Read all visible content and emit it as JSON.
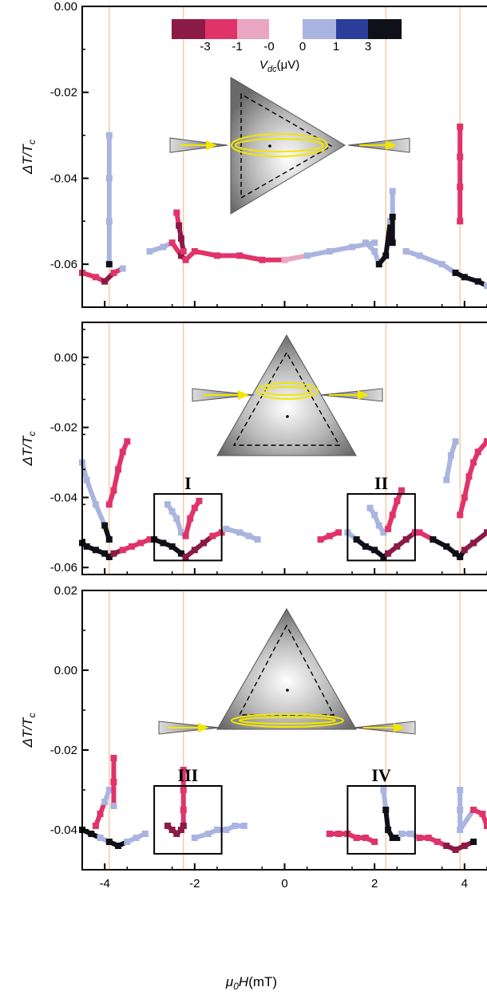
{
  "chart_data": {
    "type": "heatmap",
    "x_axis": {
      "label_main": "μ",
      "label_sub": "0",
      "label_rest": "H(mT)",
      "range": [
        -4.5,
        4.5
      ],
      "ticks": [
        -4,
        -2,
        0,
        2,
        4
      ],
      "tick_labels": [
        "-4",
        "-2",
        "0",
        "2",
        "4"
      ]
    },
    "y_axis_label": {
      "main": "ΔT/T",
      "sub": "c"
    },
    "colorbar": {
      "title_main": "V",
      "title_sub": "dc",
      "title_rest": "(μV)",
      "tick_labels": [
        "-3",
        "-1",
        "-0",
        "0",
        "1",
        "3"
      ],
      "colors": [
        "#8b1a47",
        "#e0336a",
        "#eaa5c0",
        "#ffffff",
        "#aab4e0",
        "#2b3e9c",
        "#101018"
      ]
    },
    "reference_lines_mT": [
      -3.9,
      -2.25,
      2.25,
      3.9
    ],
    "panels": [
      {
        "id": "top",
        "ylim": [
          -0.07,
          0.0
        ],
        "y_ticks": [
          0.0,
          -0.02,
          -0.04,
          -0.06
        ],
        "y_tick_labels": [
          "0.00",
          "-0.02",
          "-0.04",
          "-0.06"
        ],
        "inset": "triangle-pointing-right",
        "boxes": [],
        "traces": [
          {
            "x": [
              -4.5,
              -4.2,
              -4.0,
              -3.8,
              -3.6
            ],
            "y": [
              -0.062,
              -0.063,
              -0.064,
              -0.062,
              -0.061
            ],
            "v": [
              -1,
              -1,
              -3,
              -1,
              1
            ]
          },
          {
            "x": [
              -3.9,
              -3.9,
              -3.9,
              -3.9
            ],
            "y": [
              -0.03,
              -0.04,
              -0.05,
              -0.06
            ],
            "v": [
              1,
              1,
              1,
              3
            ]
          },
          {
            "x": [
              -3.0,
              -2.7,
              -2.5,
              -2.3,
              -2.2,
              -2.0,
              -1.5,
              -1.0,
              -0.5,
              0.0,
              0.5,
              1.0,
              1.5,
              2.0
            ],
            "y": [
              -0.057,
              -0.056,
              -0.055,
              -0.058,
              -0.059,
              -0.057,
              -0.058,
              -0.058,
              -0.059,
              -0.059,
              -0.058,
              -0.057,
              -0.056,
              -0.055
            ],
            "v": [
              1,
              1,
              -1,
              -3,
              -1,
              -1,
              -1,
              -1,
              -1,
              0,
              1,
              1,
              1,
              1
            ]
          },
          {
            "x": [
              -2.4,
              -2.35,
              -2.3,
              -2.25
            ],
            "y": [
              -0.048,
              -0.051,
              -0.054,
              -0.057
            ],
            "v": [
              -1,
              -3,
              -3,
              -1
            ]
          },
          {
            "x": [
              1.8,
              2.0,
              2.1,
              2.25,
              2.35
            ],
            "y": [
              -0.055,
              -0.057,
              -0.06,
              -0.058,
              -0.05
            ],
            "v": [
              1,
              1,
              3,
              3,
              1
            ]
          },
          {
            "x": [
              2.4,
              2.4,
              2.4
            ],
            "y": [
              -0.043,
              -0.049,
              -0.055
            ],
            "v": [
              1,
              3,
              3
            ]
          },
          {
            "x": [
              2.7,
              3.0,
              3.5,
              3.8,
              4.0,
              4.3,
              4.5
            ],
            "y": [
              -0.057,
              -0.058,
              -0.06,
              -0.062,
              -0.063,
              -0.064,
              -0.065
            ],
            "v": [
              1,
              1,
              1,
              3,
              3,
              3,
              1
            ]
          },
          {
            "x": [
              3.9,
              3.9,
              3.9,
              3.9
            ],
            "y": [
              -0.028,
              -0.035,
              -0.042,
              -0.05
            ],
            "v": [
              -1,
              -1,
              -1,
              -1
            ]
          }
        ]
      },
      {
        "id": "middle",
        "ylim": [
          -0.062,
          0.01
        ],
        "y_ticks": [
          0.0,
          -0.02,
          -0.04,
          -0.06
        ],
        "y_tick_labels": [
          "0.00",
          "-0.02",
          "-0.04",
          "-0.06"
        ],
        "inset": "triangle-pointing-up-top-edge",
        "boxes": [
          {
            "label": "I",
            "x": [
              -2.9,
              -1.4
            ],
            "y": [
              -0.058,
              -0.039
            ]
          },
          {
            "label": "II",
            "x": [
              1.4,
              2.9
            ],
            "y": [
              -0.058,
              -0.039
            ]
          }
        ],
        "traces": [
          {
            "x": [
              -4.5,
              -4.4,
              -4.2,
              -4.0,
              -3.9,
              -3.8,
              -3.6,
              -3.4,
              -3.2,
              -3.0
            ],
            "y": [
              -0.053,
              -0.054,
              -0.055,
              -0.056,
              -0.057,
              -0.056,
              -0.055,
              -0.054,
              -0.053,
              -0.052
            ],
            "v": [
              3,
              3,
              3,
              3,
              3,
              -3,
              -1,
              -1,
              -1,
              -1
            ]
          },
          {
            "x": [
              -4.5,
              -4.4,
              -4.2,
              -4.0,
              -3.9
            ],
            "y": [
              -0.03,
              -0.035,
              -0.042,
              -0.048,
              -0.052
            ],
            "v": [
              1,
              1,
              1,
              3,
              3
            ]
          },
          {
            "x": [
              -3.9,
              -3.8,
              -3.7,
              -3.6,
              -3.5
            ],
            "y": [
              -0.042,
              -0.038,
              -0.032,
              -0.027,
              -0.024
            ],
            "v": [
              -1,
              -1,
              -1,
              -1,
              -1
            ]
          },
          {
            "x": [
              -2.9,
              -2.7,
              -2.5,
              -2.3,
              -2.2,
              -2.0,
              -1.8,
              -1.6,
              -1.4
            ],
            "y": [
              -0.052,
              -0.053,
              -0.054,
              -0.056,
              -0.057,
              -0.055,
              -0.053,
              -0.051,
              -0.05
            ],
            "v": [
              3,
              3,
              3,
              3,
              -3,
              -3,
              -3,
              -1,
              -1
            ]
          },
          {
            "x": [
              -2.6,
              -2.5,
              -2.4,
              -2.3,
              -2.2,
              -2.1,
              -2.0,
              -1.9
            ],
            "y": [
              -0.042,
              -0.044,
              -0.046,
              -0.05,
              -0.051,
              -0.046,
              -0.043,
              -0.041
            ],
            "v": [
              1,
              1,
              1,
              1,
              -1,
              -1,
              -1,
              -1
            ]
          },
          {
            "x": [
              -1.3,
              -1.0,
              -0.8,
              -0.6
            ],
            "y": [
              -0.049,
              -0.05,
              -0.051,
              -0.052
            ],
            "v": [
              1,
              1,
              1,
              1
            ]
          },
          {
            "x": [
              0.8,
              1.0,
              1.2
            ],
            "y": [
              -0.052,
              -0.051,
              -0.05
            ],
            "v": [
              -1,
              -1,
              -1
            ]
          },
          {
            "x": [
              1.4,
              1.6,
              1.8,
              2.0,
              2.2,
              2.3,
              2.5,
              2.7,
              2.9
            ],
            "y": [
              -0.05,
              -0.052,
              -0.054,
              -0.055,
              -0.057,
              -0.056,
              -0.054,
              -0.052,
              -0.05
            ],
            "v": [
              1,
              3,
              3,
              3,
              3,
              -3,
              -3,
              -3,
              -1
            ]
          },
          {
            "x": [
              1.9,
              2.0,
              2.1,
              2.2,
              2.3,
              2.4,
              2.5,
              2.6
            ],
            "y": [
              -0.043,
              -0.045,
              -0.048,
              -0.05,
              -0.049,
              -0.045,
              -0.041,
              -0.038
            ],
            "v": [
              1,
              1,
              1,
              1,
              -1,
              -1,
              -1,
              -1
            ]
          },
          {
            "x": [
              3.0,
              3.3,
              3.6,
              3.8,
              3.9,
              4.0,
              4.2,
              4.5
            ],
            "y": [
              -0.05,
              -0.052,
              -0.054,
              -0.056,
              -0.057,
              -0.055,
              -0.053,
              -0.05
            ],
            "v": [
              -1,
              3,
              3,
              3,
              3,
              -3,
              -3,
              -3
            ]
          },
          {
            "x": [
              3.9,
              4.0,
              4.1,
              4.2,
              4.3,
              4.5
            ],
            "y": [
              -0.045,
              -0.04,
              -0.034,
              -0.03,
              -0.027,
              -0.024
            ],
            "v": [
              -1,
              -1,
              -1,
              -1,
              -1,
              -1
            ]
          },
          {
            "x": [
              3.6,
              3.7,
              3.8
            ],
            "y": [
              -0.035,
              -0.028,
              -0.024
            ],
            "v": [
              1,
              1,
              1
            ]
          }
        ]
      },
      {
        "id": "bottom",
        "ylim": [
          -0.05,
          0.02
        ],
        "y_ticks": [
          0.02,
          0.0,
          -0.02,
          -0.04
        ],
        "y_tick_labels": [
          "0.02",
          "0.00",
          "-0.02",
          "-0.04"
        ],
        "inset": "triangle-pointing-up-bottom-edge",
        "boxes": [
          {
            "label": "III",
            "x": [
              -2.9,
              -1.4
            ],
            "y": [
              -0.046,
              -0.029
            ]
          },
          {
            "label": "IV",
            "x": [
              1.4,
              2.9
            ],
            "y": [
              -0.046,
              -0.029
            ]
          }
        ],
        "traces": [
          {
            "x": [
              -4.5,
              -4.3,
              -4.1,
              -3.9,
              -3.7,
              -3.5,
              -3.3,
              -3.1
            ],
            "y": [
              -0.04,
              -0.041,
              -0.042,
              -0.043,
              -0.044,
              -0.043,
              -0.042,
              -0.041
            ],
            "v": [
              3,
              3,
              1,
              3,
              3,
              1,
              1,
              1
            ]
          },
          {
            "x": [
              -4.2,
              -4.1,
              -4.0,
              -3.9
            ],
            "y": [
              -0.039,
              -0.036,
              -0.033,
              -0.03
            ],
            "v": [
              -1,
              -1,
              1,
              1
            ]
          },
          {
            "x": [
              -3.8,
              -3.8,
              -3.8
            ],
            "y": [
              -0.022,
              -0.028,
              -0.034
            ],
            "v": [
              -1,
              -1,
              1
            ]
          },
          {
            "x": [
              -2.6,
              -2.5,
              -2.4,
              -2.3,
              -2.25
            ],
            "y": [
              -0.039,
              -0.04,
              -0.041,
              -0.04,
              -0.039
            ],
            "v": [
              -3,
              -3,
              -3,
              -3,
              -1
            ]
          },
          {
            "x": [
              -2.25,
              -2.25,
              -2.25,
              -2.25
            ],
            "y": [
              -0.025,
              -0.03,
              -0.035,
              -0.039
            ],
            "v": [
              -1,
              -1,
              -1,
              -3
            ]
          },
          {
            "x": [
              -2.0,
              -1.7,
              -1.5,
              -1.3,
              -1.1,
              -0.9
            ],
            "y": [
              -0.042,
              -0.041,
              -0.04,
              -0.04,
              -0.039,
              -0.039
            ],
            "v": [
              1,
              1,
              1,
              1,
              1,
              1
            ]
          },
          {
            "x": [
              1.0,
              1.2,
              1.4,
              1.6,
              1.8,
              2.0
            ],
            "y": [
              -0.041,
              -0.041,
              -0.041,
              -0.042,
              -0.042,
              -0.043
            ],
            "v": [
              -1,
              -1,
              -1,
              -1,
              -1,
              -1
            ]
          },
          {
            "x": [
              2.2,
              2.25,
              2.3,
              2.4,
              2.5
            ],
            "y": [
              -0.03,
              -0.035,
              -0.04,
              -0.042,
              -0.042
            ],
            "v": [
              1,
              3,
              3,
              3,
              3
            ]
          },
          {
            "x": [
              2.6,
              2.8,
              3.0,
              3.2,
              3.4,
              3.6,
              3.8,
              4.0,
              4.2
            ],
            "y": [
              -0.041,
              -0.041,
              -0.042,
              -0.042,
              -0.043,
              -0.044,
              -0.045,
              -0.044,
              -0.043
            ],
            "v": [
              1,
              1,
              -1,
              -1,
              -1,
              -3,
              -3,
              -3,
              3
            ]
          },
          {
            "x": [
              3.9,
              3.9,
              3.9,
              4.2,
              4.4,
              4.5
            ],
            "y": [
              -0.03,
              -0.035,
              -0.04,
              -0.035,
              -0.036,
              -0.039
            ],
            "v": [
              1,
              1,
              1,
              -1,
              -1,
              -1
            ]
          }
        ]
      }
    ]
  }
}
